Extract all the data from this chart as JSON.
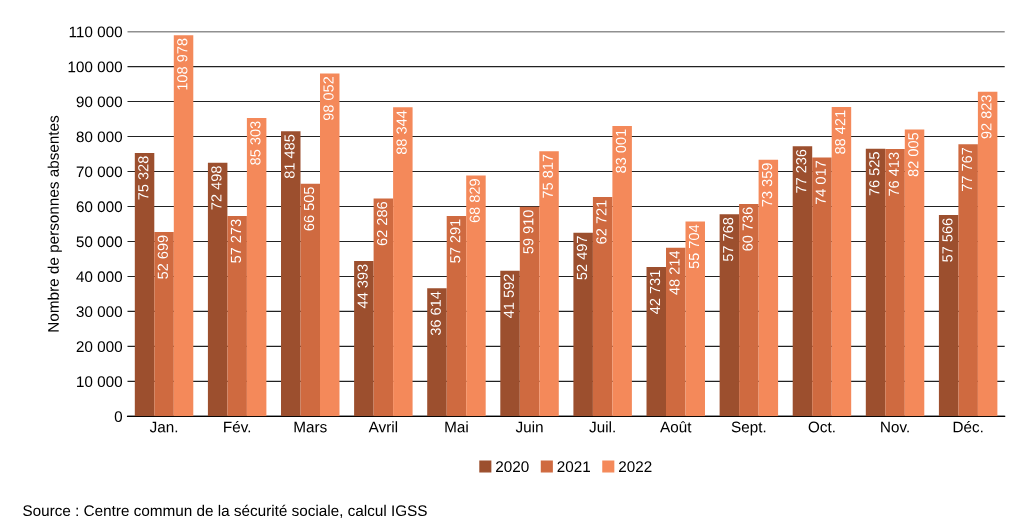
{
  "chart_data": {
    "type": "bar",
    "ylabel": "Nombre de personnes absentes",
    "categories": [
      "Jan.",
      "Fév.",
      "Mars",
      "Avril",
      "Mai",
      "Juin",
      "Juil.",
      "Août",
      "Sept.",
      "Oct.",
      "Nov.",
      "Déc."
    ],
    "series": [
      {
        "name": "2020",
        "color": "#9c4f2e",
        "values": [
          75328,
          72498,
          81485,
          44393,
          36614,
          41592,
          52497,
          42731,
          57768,
          77236,
          76525,
          57566
        ]
      },
      {
        "name": "2021",
        "color": "#cf6a40",
        "values": [
          52699,
          57273,
          66505,
          62286,
          57291,
          59910,
          62721,
          48214,
          60736,
          74017,
          76413,
          77767
        ]
      },
      {
        "name": "2022",
        "color": "#f4895a",
        "values": [
          108978,
          85303,
          98052,
          88344,
          68829,
          75817,
          83001,
          55704,
          73359,
          88421,
          82005,
          92823
        ]
      }
    ],
    "ylim": [
      0,
      110000
    ],
    "yticks": [
      0,
      {
        "value": 10000,
        "label": "10 000"
      },
      {
        "value": 20000,
        "label": "20 000"
      },
      {
        "value": 30000,
        "label": "30 000"
      },
      {
        "value": 40000,
        "label": "40 000"
      },
      {
        "value": 50000,
        "label": "50 000"
      },
      {
        "value": 60000,
        "label": "60 000"
      },
      {
        "value": 70000,
        "label": "70 000"
      },
      {
        "value": 80000,
        "label": "80 000"
      },
      {
        "value": 90000,
        "label": "90 000"
      },
      {
        "value": 100000,
        "label": "100 000"
      },
      {
        "value": 110000,
        "label": "110 000"
      }
    ],
    "grid": "y",
    "legend": "bottom",
    "data_labels": true,
    "annotations": [
      "Source : Centre commun de la sécurité sociale, calcul IGSS"
    ]
  }
}
